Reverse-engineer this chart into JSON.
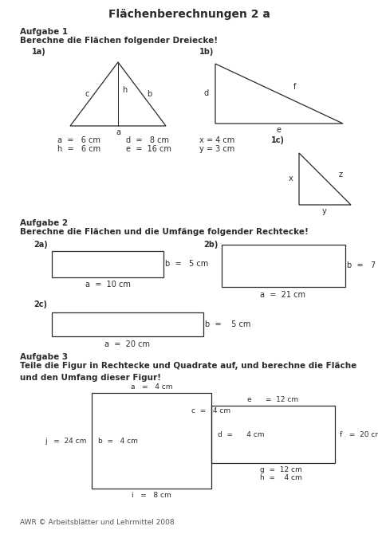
{
  "title": "Flächenberechnungen 2 a",
  "aufgabe1_label": "Aufgabe 1",
  "aufgabe1_sub": "Berechne die Flächen folgender Dreiecke!",
  "aufgabe2_label": "Aufgabe 2",
  "aufgabe2_sub": "Berechne die Flächen und die Umfänge folgender Rechtecke!",
  "aufgabe3_label": "Aufgabe 3",
  "aufgabe3_sub1": "Teile die Figur in Rechtecke und Quadrate auf, und berechne die Fläche",
  "aufgabe3_sub2": "und den Umfang dieser Figur!",
  "footer": "AWR © Arbeitsblätter und Lehrmittel 2008",
  "line_color": "#2a2a2a"
}
